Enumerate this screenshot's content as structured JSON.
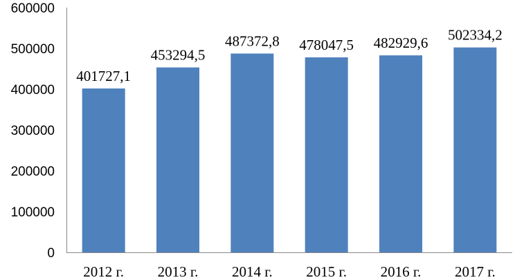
{
  "chart_data": {
    "type": "bar",
    "categories": [
      "2012 г.",
      "2013 г.",
      "2014 г.",
      "2015 г.",
      "2016 г.",
      "2017 г."
    ],
    "values": [
      401727.1,
      453294.5,
      487372.8,
      478047.5,
      482929.6,
      502334.2
    ],
    "data_labels": [
      "401727,1",
      "453294,5",
      "487372,8",
      "478047,5",
      "482929,6",
      "502334,2"
    ],
    "y_ticks": [
      "0",
      "100000",
      "200000",
      "300000",
      "400000",
      "500000",
      "600000"
    ],
    "y_tick_values": [
      0,
      100000,
      200000,
      300000,
      400000,
      500000,
      600000
    ],
    "ylim": [
      0,
      600000
    ],
    "title": "",
    "xlabel": "",
    "ylabel": "",
    "grid": false,
    "legend": "none",
    "bar_color": "#4f81bd"
  }
}
